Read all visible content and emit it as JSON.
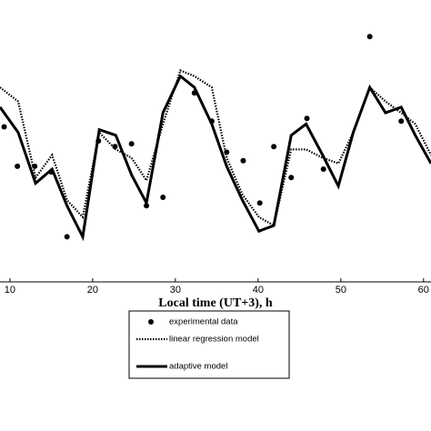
{
  "chart_data": {
    "type": "line",
    "x_label": "Local time (UT+3), h",
    "xlim": [
      8.8,
      60.9
    ],
    "ylim": [
      0,
      100
    ],
    "xticks": [
      10,
      20,
      30,
      40,
      50,
      60
    ],
    "series": [
      {
        "name": "experimental data",
        "color": "#000000",
        "style": "markers",
        "x": [
          9.3,
          10.9,
          13,
          15,
          16.9,
          20.7,
          22.7,
          24.7,
          26.5,
          28.5,
          32.3,
          34.4,
          36.2,
          38.2,
          40.2,
          41.9,
          44,
          45.9,
          47.9,
          53.5,
          57.3
        ],
        "values": [
          55,
          41,
          41,
          39,
          16,
          50,
          48,
          49,
          27,
          30,
          67,
          57,
          46,
          43,
          28,
          48,
          37,
          58,
          40,
          87,
          57
        ]
      },
      {
        "name": "linear regression model",
        "color": "#000000",
        "style": "dotted",
        "x": [
          8.8,
          11,
          13.1,
          15.1,
          16.9,
          18.8,
          20.8,
          22.8,
          24.7,
          26.5,
          28.5,
          30.6,
          32.3,
          34.4,
          36.2,
          38.1,
          40.1,
          41.9,
          44,
          45.8,
          47.8,
          49.7,
          51.5,
          53.5,
          55.4,
          57.3,
          59,
          60.9
        ],
        "values": [
          69,
          64,
          37,
          45,
          29,
          23,
          53,
          47,
          44,
          36,
          56,
          75,
          73,
          69,
          44,
          31,
          23,
          20,
          47,
          47,
          44,
          42,
          53,
          69,
          64,
          60,
          56,
          45
        ]
      },
      {
        "name": "adaptive model",
        "color": "#000000",
        "style": "solid",
        "x": [
          8.8,
          11,
          13.1,
          15.1,
          16.9,
          18.8,
          20.8,
          22.8,
          24.7,
          26.5,
          28.5,
          30.6,
          32.3,
          34.4,
          36.2,
          38.1,
          40.1,
          41.9,
          44,
          45.8,
          47.8,
          49.7,
          51.5,
          53.5,
          55.4,
          57.3,
          59,
          60.9
        ],
        "values": [
          62,
          53,
          35,
          40,
          27,
          16,
          54,
          52,
          38,
          28,
          60,
          73,
          69,
          56,
          41,
          29,
          18,
          20,
          52,
          56,
          45,
          34,
          53,
          69,
          60,
          62,
          52,
          42
        ]
      }
    ]
  }
}
